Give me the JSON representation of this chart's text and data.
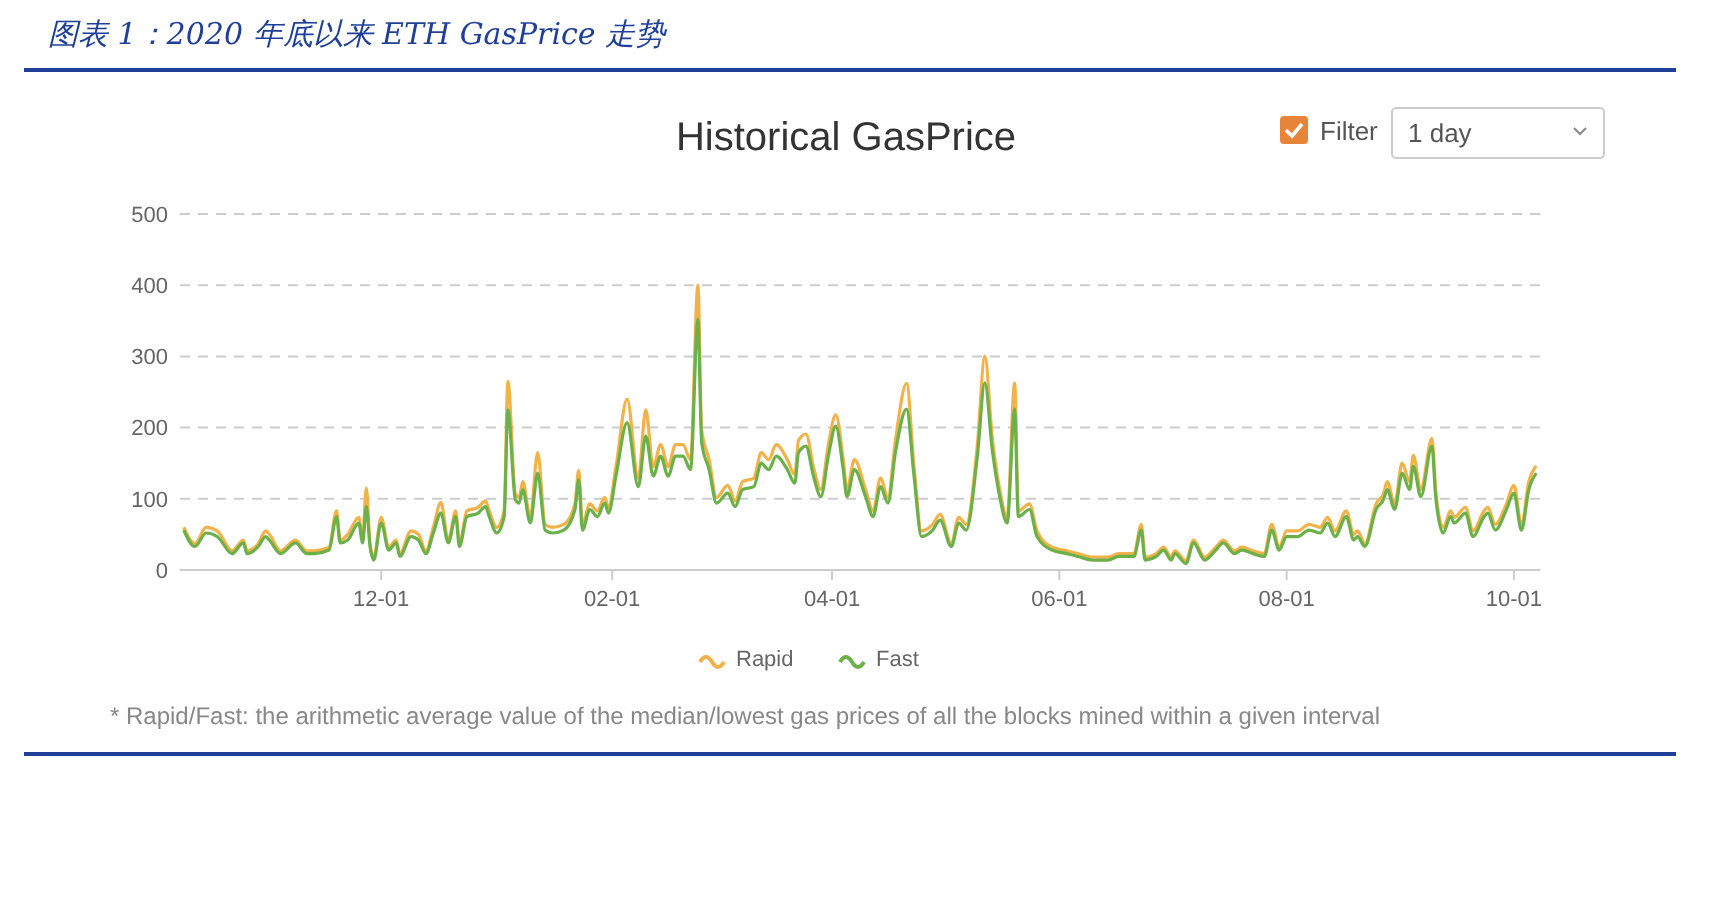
{
  "chart_data": {
    "type": "line",
    "title": "图表 1：2020 年底以来 ETH GasPrice 走势",
    "subtitle": "Historical GasPrice",
    "annotations": [
      "Filter",
      "1 day",
      "* Rapid/Fast: the arithmetic average value of the median/lowest gas prices of all the blocks mined within a given interval"
    ],
    "x": [
      "2020-10-09",
      "2020-10-12",
      "2020-10-15",
      "2020-10-18",
      "2020-10-22",
      "2020-10-25",
      "2020-10-26",
      "2020-10-29",
      "2020-10-31",
      "2020-11-01",
      "2020-11-04",
      "2020-11-08",
      "2020-11-11",
      "2020-11-13",
      "2020-11-17",
      "2020-11-19",
      "2020-11-20",
      "2020-11-22",
      "2020-11-25",
      "2020-11-26",
      "2020-11-27",
      "2020-11-28",
      "2020-11-29",
      "2020-12-01",
      "2020-12-03",
      "2020-12-05",
      "2020-12-06",
      "2020-12-09",
      "2020-12-11",
      "2020-12-13",
      "2020-12-15",
      "2020-12-17",
      "2020-12-19",
      "2020-12-21",
      "2020-12-22",
      "2020-12-24",
      "2020-12-27",
      "2020-12-29",
      "2020-12-30",
      "2021-01-01",
      "2021-01-03",
      "2021-01-04",
      "2021-01-06",
      "2021-01-07",
      "2021-01-08",
      "2021-01-10",
      "2021-01-12",
      "2021-01-14",
      "2021-01-16",
      "2021-01-19",
      "2021-01-22",
      "2021-01-23",
      "2021-01-24",
      "2021-01-26",
      "2021-01-28",
      "2021-01-30",
      "2021-01-31",
      "2021-02-02",
      "2021-02-05",
      "2021-02-08",
      "2021-02-10",
      "2021-02-12",
      "2021-02-14",
      "2021-02-16",
      "2021-02-18",
      "2021-02-20",
      "2021-02-22",
      "2021-02-24",
      "2021-02-25",
      "2021-02-27",
      "2021-03-01",
      "2021-03-04",
      "2021-03-06",
      "2021-03-08",
      "2021-03-11",
      "2021-03-13",
      "2021-03-15",
      "2021-03-17",
      "2021-03-20",
      "2021-03-22",
      "2021-03-23",
      "2021-03-25",
      "2021-03-27",
      "2021-03-29",
      "2021-03-31",
      "2021-04-02",
      "2021-04-04",
      "2021-04-05",
      "2021-04-07",
      "2021-04-10",
      "2021-04-12",
      "2021-04-14",
      "2021-04-16",
      "2021-04-18",
      "2021-04-21",
      "2021-04-23",
      "2021-04-25",
      "2021-04-28",
      "2021-04-30",
      "2021-05-03",
      "2021-05-05",
      "2021-05-07",
      "2021-05-10",
      "2021-05-12",
      "2021-05-14",
      "2021-05-16",
      "2021-05-18",
      "2021-05-20",
      "2021-05-21",
      "2021-05-24",
      "2021-05-26",
      "2021-05-30",
      "2021-06-03",
      "2021-06-06",
      "2021-06-10",
      "2021-06-14",
      "2021-06-17",
      "2021-06-21",
      "2021-06-23",
      "2021-06-24",
      "2021-06-27",
      "2021-06-29",
      "2021-07-01",
      "2021-07-02",
      "2021-07-05",
      "2021-07-07",
      "2021-07-10",
      "2021-07-13",
      "2021-07-15",
      "2021-07-18",
      "2021-07-20",
      "2021-07-23",
      "2021-07-26",
      "2021-07-28",
      "2021-07-30",
      "2021-08-01",
      "2021-08-04",
      "2021-08-07",
      "2021-08-10",
      "2021-08-12",
      "2021-08-14",
      "2021-08-17",
      "2021-08-19",
      "2021-08-20",
      "2021-08-22",
      "2021-08-25",
      "2021-08-27",
      "2021-08-28",
      "2021-08-30",
      "2021-09-01",
      "2021-09-03",
      "2021-09-04",
      "2021-09-06",
      "2021-09-09",
      "2021-09-10",
      "2021-09-12",
      "2021-09-14",
      "2021-09-15",
      "2021-09-18",
      "2021-09-20",
      "2021-09-23",
      "2021-09-24",
      "2021-09-26",
      "2021-09-29",
      "2021-10-01",
      "2021-10-03",
      "2021-10-05",
      "2021-10-07"
    ],
    "series": [
      {
        "name": "Rapid",
        "color": "#f2b24a",
        "values": [
          60,
          37,
          60,
          55,
          27,
          42,
          27,
          37,
          55,
          50,
          27,
          42,
          27,
          27,
          32,
          83,
          42,
          50,
          74,
          42,
          115,
          37,
          18,
          74,
          32,
          42,
          23,
          55,
          50,
          27,
          60,
          95,
          42,
          83,
          37,
          83,
          88,
          97,
          83,
          60,
          83,
          265,
          107,
          102,
          124,
          74,
          165,
          64,
          60,
          64,
          93,
          140,
          64,
          93,
          83,
          102,
          88,
          145,
          240,
          129,
          225,
          145,
          176,
          145,
          176,
          176,
          155,
          400,
          197,
          155,
          102,
          119,
          97,
          124,
          129,
          165,
          155,
          176,
          155,
          134,
          182,
          191,
          145,
          113,
          176,
          218,
          155,
          113,
          155,
          113,
          83,
          129,
          102,
          182,
          262,
          145,
          55,
          64,
          78,
          37,
          74,
          64,
          176,
          300,
          186,
          113,
          74,
          263,
          83,
          93,
          55,
          32,
          27,
          23,
          18,
          18,
          23,
          23,
          64,
          18,
          23,
          32,
          18,
          27,
          13,
          42,
          18,
          32,
          42,
          27,
          32,
          27,
          23,
          64,
          32,
          55,
          55,
          64,
          60,
          74,
          55,
          83,
          50,
          55,
          37,
          93,
          107,
          124,
          93,
          150,
          124,
          161,
          113,
          185,
          113,
          60,
          83,
          74,
          88,
          55,
          83,
          88,
          64,
          93,
          119,
          64,
          124,
          146
        ]
      },
      {
        "name": "Fast",
        "color": "#6cb04a",
        "values": [
          56,
          33,
          52,
          47,
          23,
          38,
          23,
          33,
          47,
          42,
          23,
          38,
          23,
          23,
          28,
          75,
          38,
          42,
          66,
          38,
          89,
          33,
          14,
          66,
          28,
          38,
          19,
          47,
          42,
          23,
          52,
          80,
          38,
          75,
          33,
          75,
          80,
          89,
          75,
          52,
          75,
          225,
          99,
          94,
          113,
          66,
          136,
          56,
          52,
          56,
          85,
          127,
          56,
          85,
          75,
          94,
          80,
          132,
          207,
          117,
          188,
          132,
          160,
          132,
          160,
          160,
          141,
          352,
          179,
          141,
          94,
          108,
          89,
          113,
          117,
          150,
          141,
          160,
          141,
          122,
          165,
          174,
          132,
          103,
          160,
          202,
          141,
          103,
          141,
          103,
          75,
          117,
          94,
          165,
          226,
          132,
          47,
          56,
          70,
          33,
          66,
          56,
          160,
          263,
          169,
          103,
          66,
          226,
          75,
          85,
          47,
          28,
          23,
          19,
          14,
          14,
          19,
          19,
          56,
          14,
          19,
          28,
          14,
          23,
          9,
          38,
          14,
          28,
          38,
          23,
          28,
          23,
          19,
          56,
          28,
          47,
          47,
          56,
          52,
          66,
          47,
          75,
          42,
          47,
          33,
          85,
          99,
          113,
          85,
          136,
          113,
          146,
          103,
          174,
          103,
          52,
          75,
          66,
          80,
          47,
          75,
          80,
          56,
          85,
          108,
          56,
          113,
          136
        ]
      }
    ],
    "xlim": [
      "2020-10-08",
      "2021-10-08"
    ],
    "xticks": [
      {
        "value": "2020-12-01",
        "label": "12-01"
      },
      {
        "value": "2021-02-01",
        "label": "02-01"
      },
      {
        "value": "2021-04-01",
        "label": "04-01"
      },
      {
        "value": "2021-06-01",
        "label": "06-01"
      },
      {
        "value": "2021-08-01",
        "label": "08-01"
      },
      {
        "value": "2021-10-01",
        "label": "10-01"
      }
    ],
    "ylim": [
      0,
      500
    ],
    "yticks": [
      0,
      100,
      200,
      300,
      400,
      500
    ],
    "grid": "y",
    "legend": "bottom",
    "marker": "none",
    "line_style": "solid"
  }
}
